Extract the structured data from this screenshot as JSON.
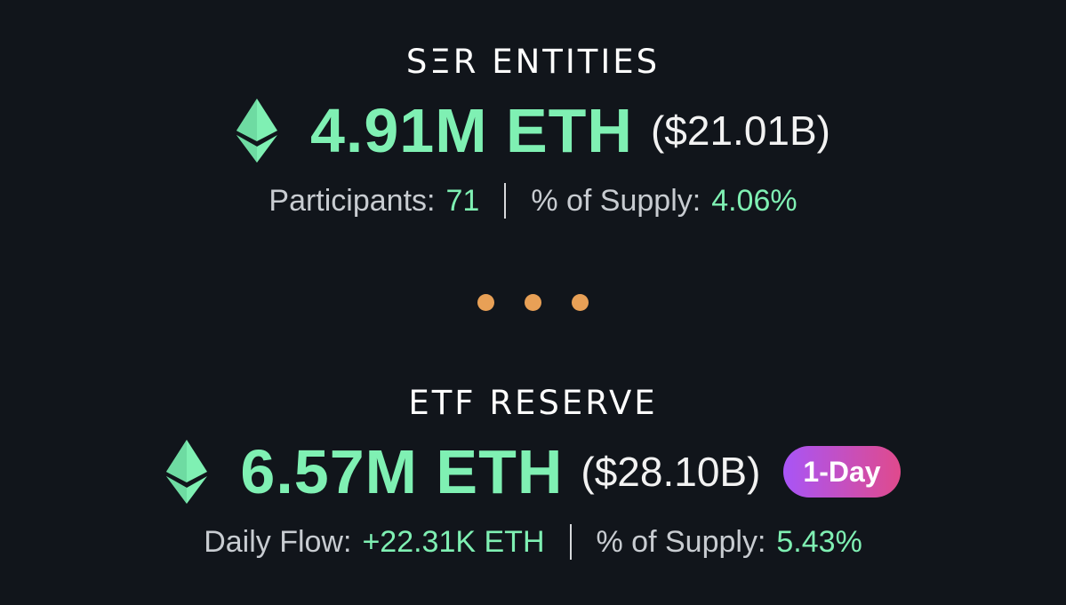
{
  "colors": {
    "background": "#11151b",
    "accent_green": "#7ff0b3",
    "dot_orange": "#e8a056",
    "badge_gradient_start": "#a855f7",
    "badge_gradient_end": "#e04a8c"
  },
  "top": {
    "title": "SΞR ENTITIES",
    "icon": "ethereum-icon",
    "eth_amount": "4.91M ETH",
    "usd_amount": "($21.01B)",
    "stats": [
      {
        "label": "Participants:",
        "value": "71"
      },
      {
        "label": "% of Supply:",
        "value": "4.06%"
      }
    ]
  },
  "separator": {
    "icon": "ellipsis-dots"
  },
  "bottom": {
    "title": "ETF RESERVE",
    "icon": "ethereum-icon",
    "eth_amount": "6.57M ETH",
    "usd_amount": "($28.10B)",
    "badge": "1-Day",
    "stats": [
      {
        "label": "Daily Flow:",
        "value": "+22.31K ETH"
      },
      {
        "label": "% of Supply:",
        "value": "5.43%"
      }
    ]
  }
}
